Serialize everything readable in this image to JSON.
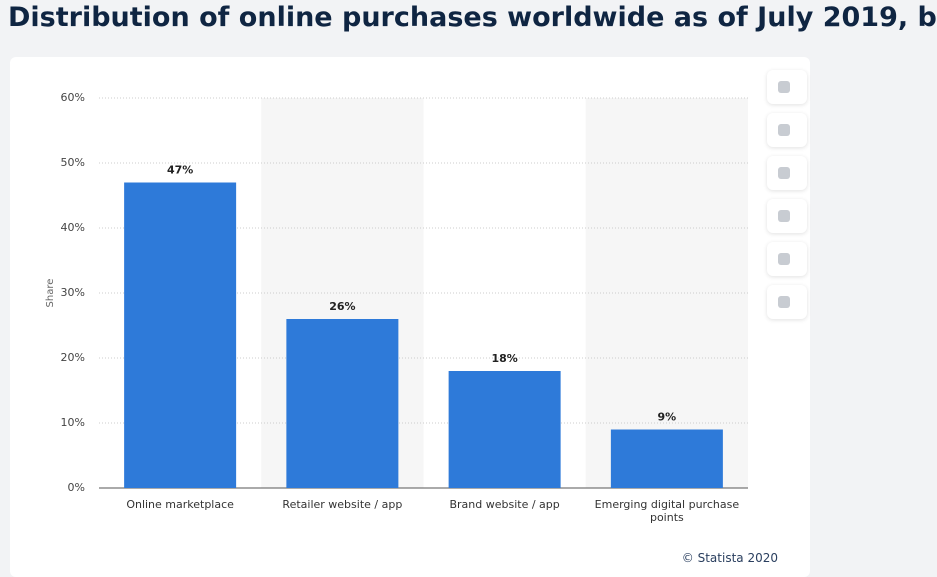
{
  "chart_data": {
    "type": "bar",
    "title": "Distribution of online purchases worldwide as of July 2019, b",
    "y_label": "Share",
    "categories": [
      "Online marketplace",
      "Retailer website / app",
      "Brand website / app",
      "Emerging digital purchase points"
    ],
    "values": [
      47,
      26,
      18,
      9
    ],
    "value_labels": [
      "47%",
      "26%",
      "18%",
      "9%"
    ],
    "color": "#2e7ad9",
    "ylim": [
      0,
      60
    ],
    "yticks": [
      {
        "value": 0,
        "label": "0%"
      },
      {
        "value": 10,
        "label": "10%"
      },
      {
        "value": 20,
        "label": "20%"
      },
      {
        "value": 30,
        "label": "30%"
      },
      {
        "value": 40,
        "label": "40%"
      },
      {
        "value": 50,
        "label": "50%"
      },
      {
        "value": 60,
        "label": "60%"
      }
    ],
    "grid": true,
    "source": "© Statista 2020"
  }
}
